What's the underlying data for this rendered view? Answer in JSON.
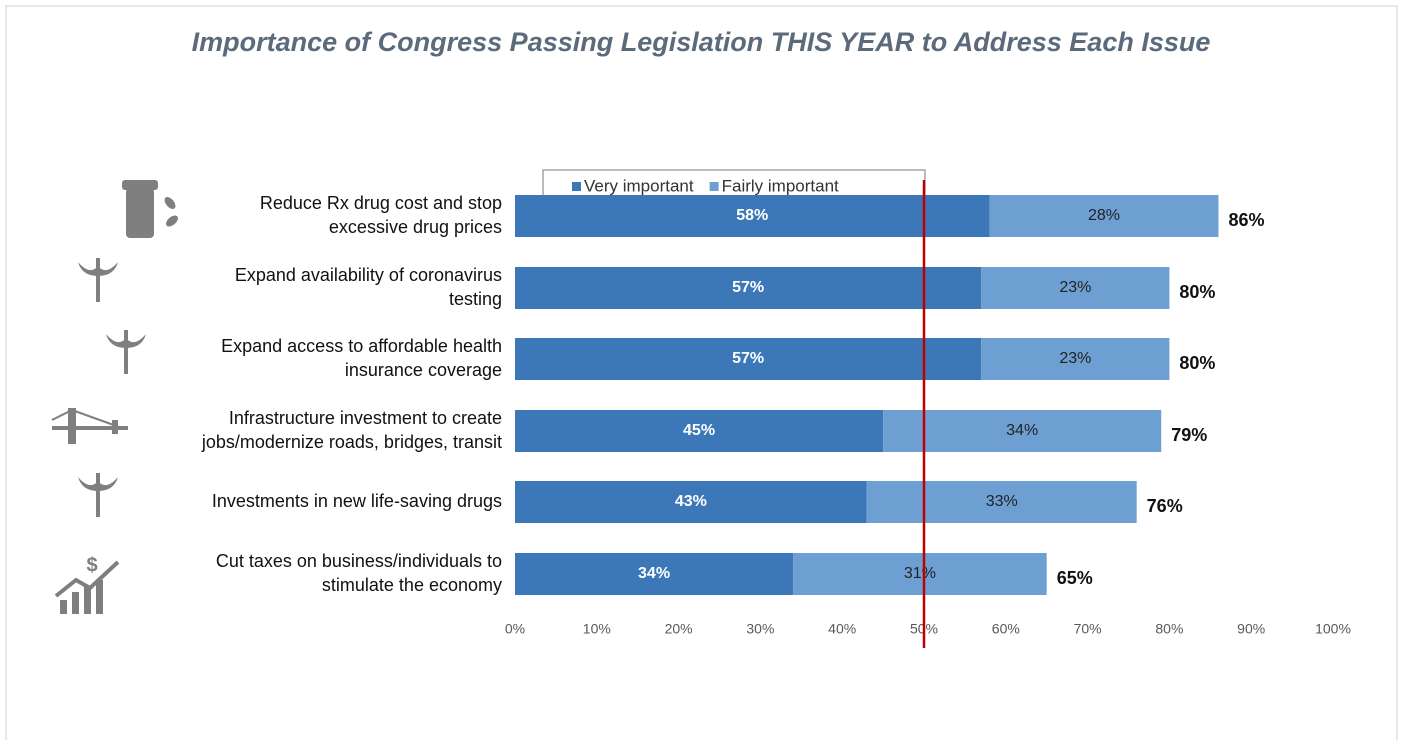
{
  "chart_data": {
    "type": "stacked_barh",
    "title": "Importance of Congress Passing Legislation THIS YEAR to Address Each Issue",
    "categories": [
      [
        "Reduce Rx drug cost and stop",
        "excessive drug prices"
      ],
      [
        "Expand availability of coronavirus",
        "testing"
      ],
      [
        "Expand access to affordable health",
        "insurance coverage"
      ],
      [
        "Infrastructure investment to create",
        "jobs/modernize roads, bridges, transit"
      ],
      [
        "Investments in new life-saving drugs"
      ],
      [
        "Cut taxes on business/individuals to",
        "stimulate the economy"
      ]
    ],
    "series": [
      {
        "name": "Very important",
        "color": "#3c78b8",
        "values": [
          58,
          57,
          57,
          45,
          43,
          34
        ],
        "value_labels": [
          "58%",
          "57%",
          "57%",
          "45%",
          "43%",
          "34%"
        ]
      },
      {
        "name": "Fairly important",
        "color": "#6e9fd2",
        "values": [
          28,
          23,
          23,
          34,
          33,
          31
        ],
        "value_labels": [
          "28%",
          "23%",
          "23%",
          "34%",
          "33%",
          "31%"
        ]
      }
    ],
    "totals": {
      "values": [
        86,
        80,
        80,
        79,
        76,
        65
      ],
      "value_labels": [
        "86%",
        "80%",
        "80%",
        "79%",
        "76%",
        "65%"
      ]
    },
    "reference_line": {
      "value": 50,
      "color": "#c00000"
    },
    "xlim": [
      0,
      100
    ],
    "xticks": [
      {
        "value": 0,
        "label": "0%"
      },
      {
        "value": 10,
        "label": "10%"
      },
      {
        "value": 20,
        "label": "20%"
      },
      {
        "value": 30,
        "label": "30%"
      },
      {
        "value": 40,
        "label": "40%"
      },
      {
        "value": 50,
        "label": "50%"
      },
      {
        "value": 60,
        "label": "60%"
      },
      {
        "value": 70,
        "label": "70%"
      },
      {
        "value": 80,
        "label": "80%"
      },
      {
        "value": 90,
        "label": "90%"
      },
      {
        "value": 100,
        "label": "100%"
      }
    ],
    "legend": "top"
  }
}
